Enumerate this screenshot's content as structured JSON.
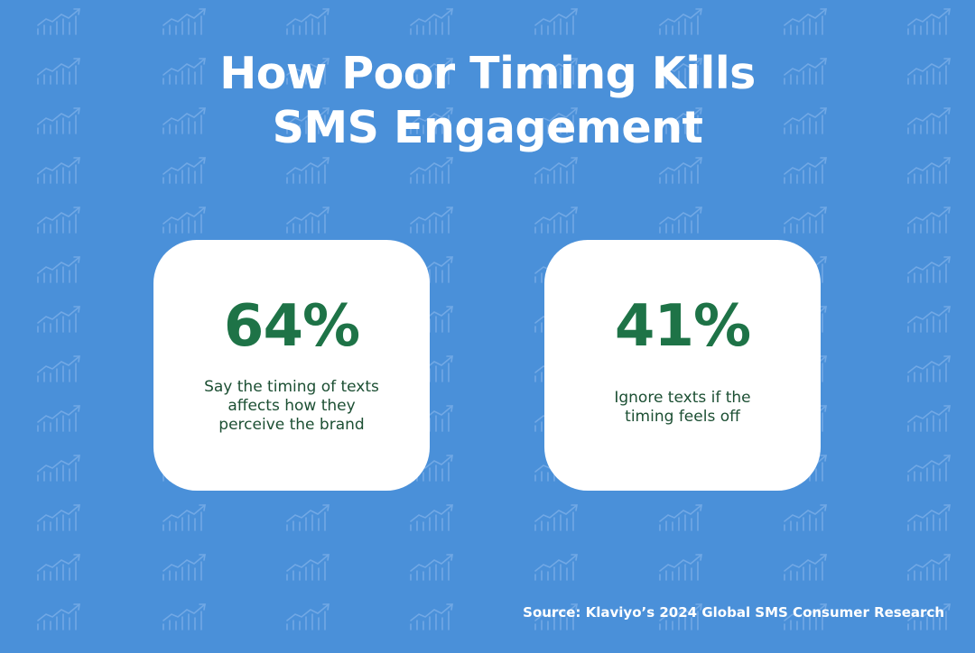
{
  "title": {
    "line1": "How Poor Timing Kills",
    "line2": "SMS Engagement"
  },
  "stats": [
    {
      "value": "64%",
      "description_lines": [
        "Say the timing of texts",
        "affects how they",
        "perceive the brand"
      ]
    },
    {
      "value": "41%",
      "description_lines": [
        "Ignore texts if the",
        "timing feels off"
      ]
    }
  ],
  "source": "Source: Klaviyo’s 2024 Global SMS Consumer Research",
  "colors": {
    "background": "#4a90d9",
    "card": "#ffffff",
    "stat_green": "#1e7347",
    "text_green": "#1c4f33",
    "pattern_icon": "#7fb1e8"
  },
  "background_pattern_icon": "trending-up-chart-icon"
}
